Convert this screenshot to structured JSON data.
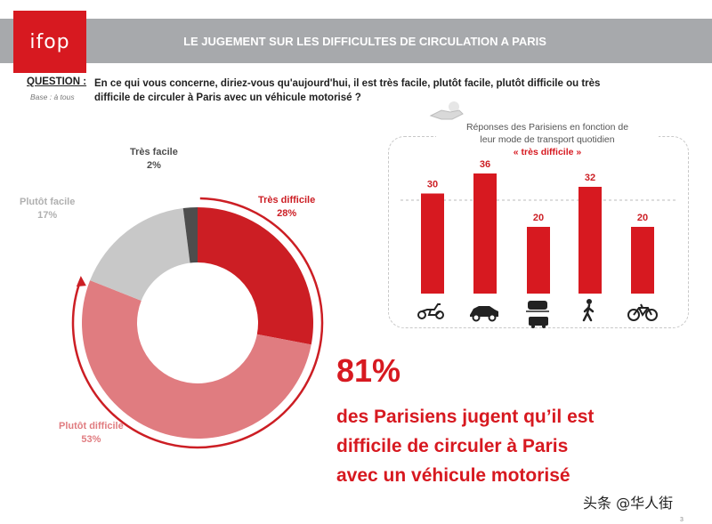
{
  "header": {
    "logo": "ifop",
    "title": "LE JUGEMENT SUR LES DIFFICULTES DE CIRCULATION A PARIS"
  },
  "question": {
    "label": "QUESTION :",
    "base": "Base : à tous",
    "text": "En ce qui vous concerne, diriez-vous qu'aujourd'hui, il est très facile, plutôt facile, plutôt difficile ou très difficile de circuler à Paris avec un véhicule motorisé ?"
  },
  "chart_data": [
    {
      "type": "pie",
      "variant": "donut",
      "labels": [
        "Très difficile",
        "Plutôt difficile",
        "Plutôt facile",
        "Très facile"
      ],
      "values": [
        28,
        53,
        17,
        2
      ],
      "value_labels": [
        "28%",
        "53%",
        "17%",
        "2%"
      ],
      "colors": [
        "#cc1e24",
        "#e07c80",
        "#c8c8c8",
        "#4d4d4d"
      ]
    },
    {
      "type": "bar",
      "title": "Réponses des Parisiens en fonction de leur mode de transport quotidien",
      "subtitle": "« très difficile »",
      "categories": [
        "Deux-roues motorisé",
        "Voiture",
        "Transports en commun",
        "Marche",
        "Vélo"
      ],
      "values": [
        30,
        36,
        20,
        32,
        20
      ],
      "reference_value": 28,
      "color": "#d71920"
    }
  ],
  "panel": {
    "title_line1": "Réponses des Parisiens en fonction de",
    "title_line2": "leur mode de transport quotidien",
    "highlight": "« très difficile »"
  },
  "highlight": {
    "percent": "81%",
    "line1": "des Parisiens jugent qu’il est",
    "line2": "difficile de circuler à Paris",
    "line3": "avec un véhicule motorisé"
  },
  "watermark": "头条 @华人街",
  "page_number": "3"
}
